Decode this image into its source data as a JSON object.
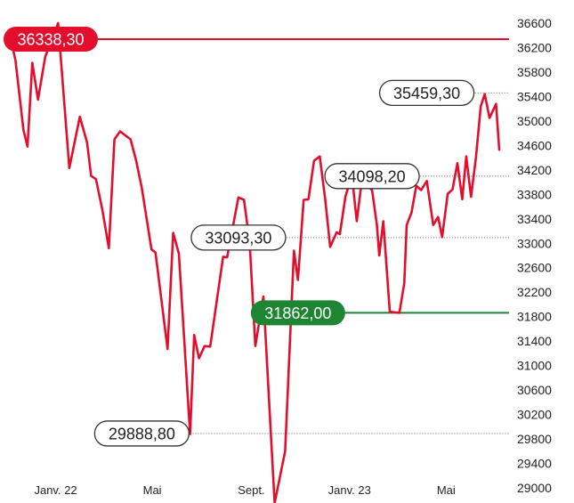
{
  "chart_data": {
    "type": "line",
    "title": "",
    "xlabel": "",
    "ylabel": "",
    "ylim": [
      29000,
      36600
    ],
    "y_ticks": [
      29000,
      29400,
      29800,
      30200,
      30600,
      31000,
      31400,
      31800,
      32200,
      32600,
      33000,
      33400,
      33800,
      34200,
      34600,
      35000,
      35400,
      35800,
      36200,
      36600
    ],
    "y_tick_labels": [
      "29000",
      "29400",
      "29800",
      "30200",
      "30600",
      "31000",
      "31400",
      "31800",
      "32200",
      "32600",
      "33000",
      "33400",
      "33800",
      "34200",
      "34600",
      "35000",
      "35400",
      "35800",
      "36200",
      "36600"
    ],
    "x_ticks": [
      {
        "label": "Janv. 22",
        "date": "2022-01-01"
      },
      {
        "label": "Mai",
        "date": "2022-05-01"
      },
      {
        "label": "Sept.",
        "date": "2022-09-01"
      },
      {
        "label": "Janv. 23",
        "date": "2023-01-01"
      },
      {
        "label": "Mai",
        "date": "2023-05-01"
      }
    ],
    "series": [
      {
        "color": "#e30d2c",
        "points": [
          {
            "x": "2021-11-05",
            "y": 36400
          },
          {
            "x": "2021-11-12",
            "y": 36000
          },
          {
            "x": "2021-11-22",
            "y": 34850
          },
          {
            "x": "2021-11-27",
            "y": 34580
          },
          {
            "x": "2021-12-03",
            "y": 35950
          },
          {
            "x": "2021-12-10",
            "y": 35350
          },
          {
            "x": "2021-12-19",
            "y": 36050
          },
          {
            "x": "2022-01-04",
            "y": 36600
          },
          {
            "x": "2022-01-09",
            "y": 35750
          },
          {
            "x": "2022-01-18",
            "y": 34230
          },
          {
            "x": "2022-01-31",
            "y": 35070
          },
          {
            "x": "2022-02-09",
            "y": 34650
          },
          {
            "x": "2022-02-14",
            "y": 34100
          },
          {
            "x": "2022-02-20",
            "y": 34050
          },
          {
            "x": "2022-02-28",
            "y": 33550
          },
          {
            "x": "2022-03-08",
            "y": 32920
          },
          {
            "x": "2022-03-15",
            "y": 34700
          },
          {
            "x": "2022-03-22",
            "y": 34830
          },
          {
            "x": "2022-04-04",
            "y": 34700
          },
          {
            "x": "2022-04-11",
            "y": 34350
          },
          {
            "x": "2022-04-18",
            "y": 33900
          },
          {
            "x": "2022-04-30",
            "y": 32900
          },
          {
            "x": "2022-05-05",
            "y": 32850
          },
          {
            "x": "2022-05-20",
            "y": 31270
          },
          {
            "x": "2022-05-27",
            "y": 33170
          },
          {
            "x": "2022-06-03",
            "y": 32830
          },
          {
            "x": "2022-06-17",
            "y": 29880
          },
          {
            "x": "2022-06-22",
            "y": 31500
          },
          {
            "x": "2022-06-28",
            "y": 31120
          },
          {
            "x": "2022-07-05",
            "y": 31320
          },
          {
            "x": "2022-07-12",
            "y": 31310
          },
          {
            "x": "2022-07-28",
            "y": 32780
          },
          {
            "x": "2022-08-02",
            "y": 32770
          },
          {
            "x": "2022-08-16",
            "y": 33750
          },
          {
            "x": "2022-08-23",
            "y": 33710
          },
          {
            "x": "2022-08-30",
            "y": 33000
          },
          {
            "x": "2022-09-06",
            "y": 31320
          },
          {
            "x": "2022-09-16",
            "y": 32130
          },
          {
            "x": "2022-09-30",
            "y": 28750
          },
          {
            "x": "2022-10-13",
            "y": 29600
          },
          {
            "x": "2022-10-24",
            "y": 32880
          },
          {
            "x": "2022-10-29",
            "y": 32400
          },
          {
            "x": "2022-11-05",
            "y": 33710
          },
          {
            "x": "2022-11-11",
            "y": 33720
          },
          {
            "x": "2022-11-18",
            "y": 34350
          },
          {
            "x": "2022-11-25",
            "y": 34420
          },
          {
            "x": "2022-12-02",
            "y": 33700
          },
          {
            "x": "2022-12-08",
            "y": 32940
          },
          {
            "x": "2022-12-16",
            "y": 33180
          },
          {
            "x": "2022-12-20",
            "y": 33150
          },
          {
            "x": "2022-12-27",
            "y": 33770
          },
          {
            "x": "2023-01-04",
            "y": 34100
          },
          {
            "x": "2023-01-10",
            "y": 33360
          },
          {
            "x": "2023-01-16",
            "y": 34000
          },
          {
            "x": "2023-01-23",
            "y": 33940
          },
          {
            "x": "2023-01-29",
            "y": 33870
          },
          {
            "x": "2023-02-04",
            "y": 33300
          },
          {
            "x": "2023-02-07",
            "y": 32800
          },
          {
            "x": "2023-02-12",
            "y": 33360
          },
          {
            "x": "2023-02-20",
            "y": 31880
          },
          {
            "x": "2023-03-04",
            "y": 31862
          },
          {
            "x": "2023-03-10",
            "y": 32350
          },
          {
            "x": "2023-03-13",
            "y": 33300
          },
          {
            "x": "2023-03-19",
            "y": 33500
          },
          {
            "x": "2023-03-25",
            "y": 33940
          },
          {
            "x": "2023-03-31",
            "y": 33870
          },
          {
            "x": "2023-04-07",
            "y": 34020
          },
          {
            "x": "2023-04-15",
            "y": 33300
          },
          {
            "x": "2023-04-21",
            "y": 33430
          },
          {
            "x": "2023-04-26",
            "y": 33100
          },
          {
            "x": "2023-05-03",
            "y": 33810
          },
          {
            "x": "2023-05-09",
            "y": 33880
          },
          {
            "x": "2023-05-15",
            "y": 34310
          },
          {
            "x": "2023-05-21",
            "y": 33720
          },
          {
            "x": "2023-05-26",
            "y": 34420
          },
          {
            "x": "2023-06-01",
            "y": 33760
          },
          {
            "x": "2023-06-07",
            "y": 34400
          },
          {
            "x": "2023-06-13",
            "y": 35240
          },
          {
            "x": "2023-06-18",
            "y": 35440
          },
          {
            "x": "2023-06-24",
            "y": 35050
          },
          {
            "x": "2023-07-02",
            "y": 35280
          },
          {
            "x": "2023-07-06",
            "y": 34530
          }
        ]
      }
    ],
    "annotations": [
      {
        "label": "36338,30",
        "value": 36338.3,
        "style": "filled",
        "color": "#e30d2c",
        "line": "solid",
        "date": "2021-12-10"
      },
      {
        "label": "35459,30",
        "value": 35459.3,
        "style": "outline",
        "color": "#333333",
        "line": "dotted",
        "date": "2023-04-07"
      },
      {
        "label": "34098,20",
        "value": 34098.2,
        "style": "outline",
        "color": "#333333",
        "line": "dotted",
        "date": "2023-01-29"
      },
      {
        "label": "33093,30",
        "value": 33093.3,
        "style": "outline",
        "color": "#333333",
        "line": "dotted",
        "date": "2022-08-16"
      },
      {
        "label": "31862,00",
        "value": 31862.0,
        "style": "filled",
        "color": "#1e8533",
        "line": "solid",
        "date": "2022-10-29"
      },
      {
        "label": "29888,80",
        "value": 29888.8,
        "style": "outline",
        "color": "#333333",
        "line": "dotted",
        "date": "2022-04-18"
      }
    ],
    "grid": false
  }
}
